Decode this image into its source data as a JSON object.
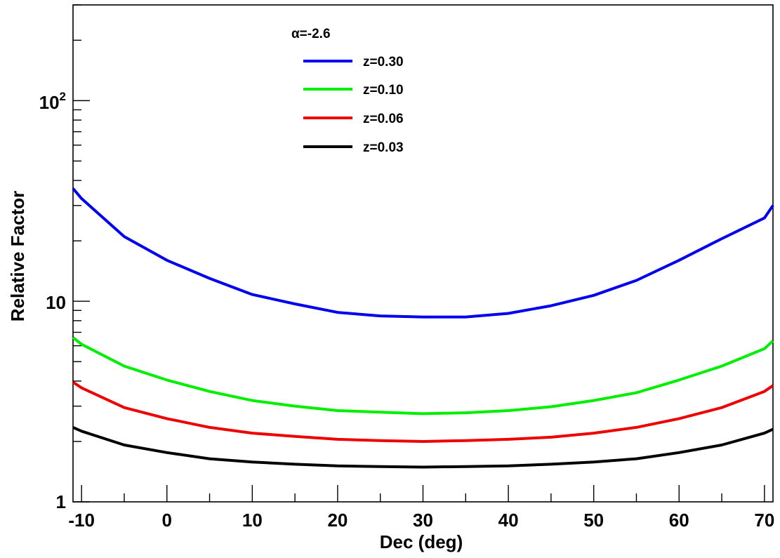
{
  "chart_data": {
    "type": "line",
    "xlabel": "Dec (deg)",
    "ylabel": "Relative Factor",
    "xlim": [
      -11,
      71
    ],
    "ylim": [
      1,
      300
    ],
    "y_scale": "log",
    "grid": false,
    "legend_position": "top-center",
    "legend_title": "α=-2.6",
    "x_ticks": [
      -10,
      0,
      10,
      20,
      30,
      40,
      50,
      60,
      70
    ],
    "x_tick_labels": [
      "-10",
      "0",
      "10",
      "20",
      "30",
      "40",
      "50",
      "60",
      "70"
    ],
    "y_major_ticks": [
      1,
      10,
      100
    ],
    "y_tick_labels": {
      "base": "10",
      "exponent": "2",
      "ten": "10",
      "one": "1"
    },
    "x": [
      -11,
      -10,
      -5,
      0,
      5,
      10,
      15,
      20,
      25,
      30,
      35,
      40,
      45,
      50,
      55,
      60,
      65,
      70,
      71
    ],
    "series": [
      {
        "name": "z=0.30",
        "color": "#0000ee",
        "values": [
          36.5,
          32.5,
          21.0,
          16.0,
          13.0,
          10.8,
          9.7,
          8.8,
          8.45,
          8.35,
          8.35,
          8.7,
          9.5,
          10.7,
          12.7,
          16.0,
          20.5,
          26.0,
          30.0
        ]
      },
      {
        "name": "z=0.10",
        "color": "#00ee00",
        "values": [
          6.6,
          6.1,
          4.75,
          4.05,
          3.55,
          3.2,
          3.0,
          2.85,
          2.8,
          2.75,
          2.78,
          2.85,
          2.98,
          3.2,
          3.5,
          4.05,
          4.75,
          5.8,
          6.35
        ]
      },
      {
        "name": "z=0.06",
        "color": "#ee0000",
        "values": [
          3.95,
          3.7,
          2.95,
          2.6,
          2.35,
          2.2,
          2.12,
          2.05,
          2.02,
          2.0,
          2.02,
          2.05,
          2.1,
          2.2,
          2.35,
          2.6,
          2.95,
          3.55,
          3.8
        ]
      },
      {
        "name": "z=0.03",
        "color": "#000000",
        "values": [
          2.35,
          2.25,
          1.92,
          1.76,
          1.64,
          1.58,
          1.54,
          1.51,
          1.5,
          1.49,
          1.5,
          1.51,
          1.54,
          1.58,
          1.64,
          1.76,
          1.92,
          2.2,
          2.3
        ]
      }
    ]
  }
}
